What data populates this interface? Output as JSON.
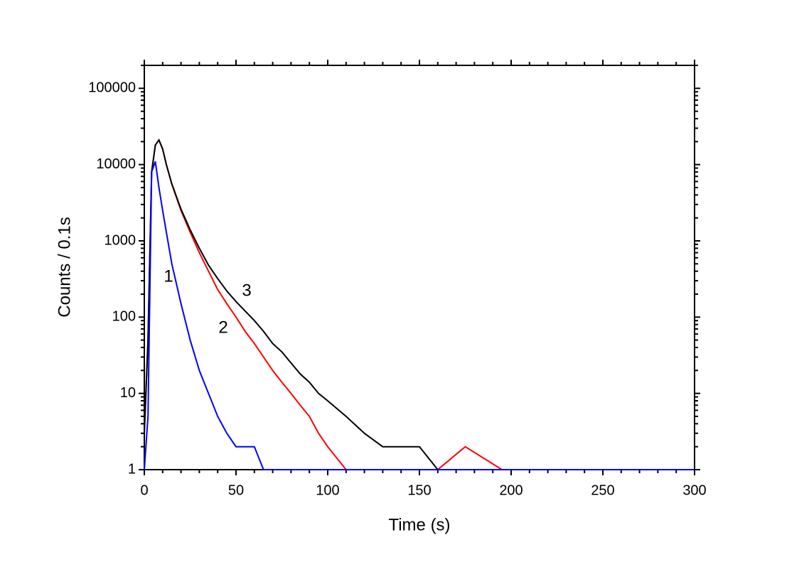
{
  "chart_data": {
    "type": "line",
    "xlabel": "Time (s)",
    "ylabel": "Counts / 0.1s",
    "log_y": true,
    "x": [
      0,
      2,
      4,
      6,
      8,
      10,
      12,
      15,
      20,
      25,
      30,
      35,
      40,
      45,
      50,
      55,
      60,
      65,
      70,
      75,
      80,
      85,
      90,
      95,
      100,
      110,
      120,
      130,
      140,
      150,
      160,
      175,
      195,
      220,
      260,
      300
    ],
    "series": [
      {
        "name": "2",
        "color": "#ff0000",
        "values": [
          3,
          50,
          8000,
          18000,
          21000,
          16000,
          10000,
          5500,
          2500,
          1300,
          700,
          400,
          230,
          150,
          100,
          65,
          45,
          30,
          20,
          14,
          10,
          7,
          5,
          3,
          2,
          1,
          1,
          1,
          1,
          1,
          1,
          2,
          1,
          1,
          1,
          1
        ]
      },
      {
        "name": "3",
        "color": "#000000",
        "values": [
          3,
          50,
          8000,
          18000,
          21000,
          16000,
          10000,
          5600,
          2600,
          1400,
          800,
          480,
          320,
          220,
          160,
          120,
          90,
          65,
          45,
          35,
          25,
          18,
          14,
          10,
          8,
          5,
          3,
          2,
          2,
          2,
          1,
          1,
          1,
          1,
          1,
          1
        ]
      },
      {
        "name": "1",
        "color": "#0000ff",
        "values": [
          1,
          5,
          8000,
          11000,
          5000,
          2500,
          1300,
          500,
          150,
          50,
          20,
          10,
          5,
          3,
          2,
          2,
          2,
          1,
          1,
          1,
          1,
          1,
          1,
          1,
          1,
          1,
          1,
          1,
          1,
          1,
          1,
          1,
          1,
          1,
          1,
          1
        ]
      }
    ],
    "xlim": [
      0,
      300
    ],
    "xticks": [
      0,
      50,
      100,
      150,
      200,
      250,
      300
    ],
    "ylim": [
      1,
      200000
    ],
    "yticks": [
      1,
      10,
      100,
      1000,
      10000,
      100000
    ]
  }
}
